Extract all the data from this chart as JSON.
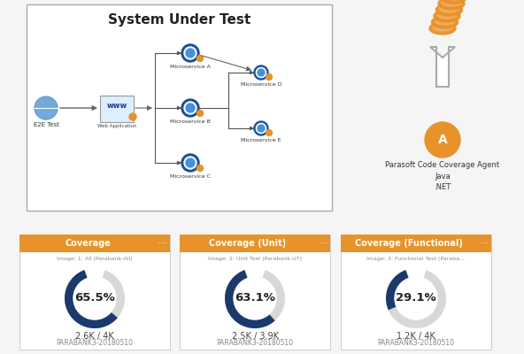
{
  "title": "System Under Test",
  "bg_color": "#f5f5f5",
  "orange_color": "#E8922A",
  "blue_dark": "#1B4F9A",
  "light_blue": "#5B9BD5",
  "dark_navy": "#1B3A6B",
  "gauge_bg": "#d8d8d8",
  "coverage_cards": [
    {
      "title": "Coverage",
      "subtitle": "Image: 1: All (Parabank-All)",
      "percent": 65.5,
      "fraction": "2.6K / 4K",
      "label": "PARABANK3-20180510"
    },
    {
      "title": "Coverage (Unit)",
      "subtitle": "Image: 2: Unit Test (Parabank-UT)",
      "percent": 63.1,
      "fraction": "2.5K / 3.9K",
      "label": "PARABANK3-20180510"
    },
    {
      "title": "Coverage (Functional)",
      "subtitle": "Image: 3: Functional Test (Paraba...",
      "percent": 29.1,
      "fraction": "1.2K / 4K",
      "label": "PARABANK3-20180510"
    }
  ],
  "agent_label": "Parasoft Code Coverage Agent\nJava\n.NET"
}
